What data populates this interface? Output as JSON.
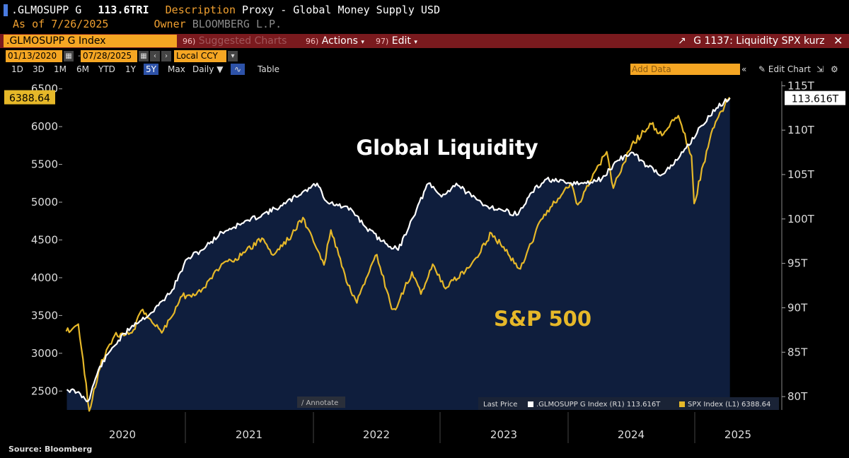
{
  "header": {
    "ticker": ".GLMOSUPP G",
    "value": "113.6TRI",
    "description_label": "Description",
    "description": "Proxy - Global Money Supply USD",
    "asof_label": "As of",
    "asof_date": "7/26/2025",
    "owner_label": "Owner",
    "owner": "BLOOMBERG L.P."
  },
  "toolbar": {
    "index_field": ".GLMOSUPP G Index",
    "suggested_num": "96)",
    "suggested": "Suggested Charts",
    "actions_num": "96)",
    "actions": "Actions",
    "edit_num": "97)",
    "edit": "Edit",
    "chart_title": "G 1137: Liquidity SPX kurz"
  },
  "range": {
    "start": "01/13/2020",
    "end": "07/28/2025",
    "currency": "Local CCY"
  },
  "periods": [
    "1D",
    "3D",
    "1M",
    "6M",
    "YTD",
    "1Y",
    "5Y",
    "Max"
  ],
  "active_period": "5Y",
  "frequency": "Daily",
  "table_label": "Table",
  "add_data": "Add Data",
  "edit_chart": "Edit Chart",
  "annotate": "Annotate",
  "footer": "Source: Bloomberg",
  "colors": {
    "liquidity": "#ffffff",
    "spx": "#e6b829",
    "area": "#0f1e3d",
    "toolbar": "#7a1a1e",
    "accent": "#f5a623"
  },
  "chart_data": {
    "type": "line",
    "annotations": [
      "Global Liquidity",
      "S&P 500"
    ],
    "x_ticks": [
      "2020",
      "2021",
      "2022",
      "2023",
      "2024",
      "2025"
    ],
    "left_axis": {
      "ticks": [
        2500,
        3000,
        3500,
        4000,
        4500,
        5000,
        5500,
        6000,
        6500
      ],
      "range": [
        2250,
        6600
      ]
    },
    "right_axis": {
      "ticks": [
        "80T",
        "85T",
        "90T",
        "95T",
        "100T",
        "105T",
        "110T",
        "115T"
      ],
      "range": [
        78.5,
        115.5
      ]
    },
    "legend": {
      "last_price_label": "Last Price",
      "liquidity_entry": ".GLMOSUPP G Index",
      "liquidity_axis": "(R1)",
      "liquidity_last": "113.616T",
      "spx_entry": "SPX Index",
      "spx_axis": "(L1)",
      "spx_last": "6388.64"
    },
    "last_labels": {
      "spx": "6388.64",
      "liquidity": "113.616T"
    },
    "series": [
      {
        "name": ".GLMOSUPP G Index",
        "axis": "right",
        "points": [
          [
            "2020-01-15",
            80.8
          ],
          [
            "2020-02-15",
            80.5
          ],
          [
            "2020-03-20",
            79.5
          ],
          [
            "2020-04-20",
            83.0
          ],
          [
            "2020-06-01",
            85.5
          ],
          [
            "2020-08-01",
            88.0
          ],
          [
            "2020-10-01",
            89.5
          ],
          [
            "2020-12-01",
            92.0
          ],
          [
            "2021-01-15",
            95.5
          ],
          [
            "2021-03-01",
            96.5
          ],
          [
            "2021-05-01",
            98.5
          ],
          [
            "2021-07-01",
            99.5
          ],
          [
            "2021-09-01",
            100.5
          ],
          [
            "2021-11-01",
            101.5
          ],
          [
            "2022-01-01",
            103.0
          ],
          [
            "2022-02-15",
            104.0
          ],
          [
            "2022-03-15",
            102.0
          ],
          [
            "2022-04-20",
            101.5
          ],
          [
            "2022-06-01",
            101.0
          ],
          [
            "2022-07-15",
            99.0
          ],
          [
            "2022-09-01",
            97.5
          ],
          [
            "2022-10-20",
            96.5
          ],
          [
            "2022-12-01",
            100.0
          ],
          [
            "2023-01-20",
            104.0
          ],
          [
            "2023-03-01",
            102.5
          ],
          [
            "2023-04-15",
            104.0
          ],
          [
            "2023-06-01",
            102.5
          ],
          [
            "2023-07-15",
            101.5
          ],
          [
            "2023-09-01",
            101.0
          ],
          [
            "2023-10-20",
            100.5
          ],
          [
            "2023-12-01",
            103.0
          ],
          [
            "2024-01-15",
            104.5
          ],
          [
            "2024-03-15",
            104.0
          ],
          [
            "2024-05-15",
            104.0
          ],
          [
            "2024-07-01",
            104.5
          ],
          [
            "2024-08-15",
            106.5
          ],
          [
            "2024-09-30",
            107.5
          ],
          [
            "2024-11-15",
            106.0
          ],
          [
            "2024-12-31",
            105.0
          ],
          [
            "2025-02-01",
            106.0
          ],
          [
            "2025-03-15",
            108.0
          ],
          [
            "2025-05-01",
            110.5
          ],
          [
            "2025-06-15",
            112.5
          ],
          [
            "2025-07-26",
            113.616
          ]
        ]
      },
      {
        "name": "SPX Index",
        "axis": "left",
        "points": [
          [
            "2020-01-13",
            3290
          ],
          [
            "2020-02-19",
            3386
          ],
          [
            "2020-03-23",
            2237
          ],
          [
            "2020-04-30",
            2912
          ],
          [
            "2020-06-08",
            3232
          ],
          [
            "2020-07-31",
            3271
          ],
          [
            "2020-09-02",
            3580
          ],
          [
            "2020-10-30",
            3270
          ],
          [
            "2020-12-31",
            3756
          ],
          [
            "2021-02-26",
            3811
          ],
          [
            "2021-04-30",
            4181
          ],
          [
            "2021-06-30",
            4297
          ],
          [
            "2021-08-31",
            4523
          ],
          [
            "2021-10-04",
            4300
          ],
          [
            "2021-11-30",
            4567
          ],
          [
            "2022-01-03",
            4796
          ],
          [
            "2022-03-08",
            4170
          ],
          [
            "2022-03-29",
            4631
          ],
          [
            "2022-05-20",
            3901
          ],
          [
            "2022-06-16",
            3666
          ],
          [
            "2022-08-16",
            4305
          ],
          [
            "2022-09-30",
            3585
          ],
          [
            "2022-10-12",
            3577
          ],
          [
            "2022-12-01",
            4076
          ],
          [
            "2022-12-28",
            3783
          ],
          [
            "2023-02-02",
            4179
          ],
          [
            "2023-03-13",
            3855
          ],
          [
            "2023-05-31",
            4180
          ],
          [
            "2023-07-31",
            4589
          ],
          [
            "2023-10-27",
            4117
          ],
          [
            "2023-12-29",
            4770
          ],
          [
            "2024-03-28",
            5254
          ],
          [
            "2024-04-19",
            4967
          ],
          [
            "2024-07-16",
            5667
          ],
          [
            "2024-08-05",
            5186
          ],
          [
            "2024-09-30",
            5762
          ],
          [
            "2024-11-29",
            6032
          ],
          [
            "2024-12-31",
            5882
          ],
          [
            "2025-02-19",
            6144
          ],
          [
            "2025-03-31",
            5612
          ],
          [
            "2025-04-08",
            4982
          ],
          [
            "2025-05-30",
            5912
          ],
          [
            "2025-06-30",
            6205
          ],
          [
            "2025-07-25",
            6388.64
          ]
        ]
      }
    ]
  }
}
